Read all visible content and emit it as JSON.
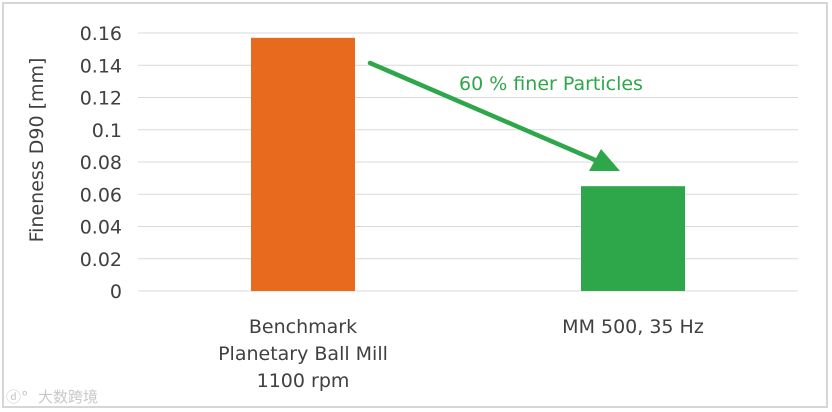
{
  "chart_data": {
    "type": "bar",
    "categories": [
      [
        "Benchmark",
        "Planetary Ball Mill",
        "1100 rpm"
      ],
      [
        "MM 500, 35 Hz"
      ]
    ],
    "values": [
      0.157,
      0.065
    ],
    "bar_colors": [
      "#e86a1f",
      "#2ea64a"
    ],
    "ylabel": "Fineness D90 [mm]",
    "ylim": [
      0,
      0.16
    ],
    "yticks": [
      "0",
      "0.02",
      "0.04",
      "0.06",
      "0.08",
      "0.1",
      "0.12",
      "0.14",
      "0.16"
    ],
    "grid": true,
    "annotation": {
      "text": "60 % finer Particles",
      "color": "#2ea64a"
    }
  },
  "watermark": {
    "text": "大数跨境"
  }
}
